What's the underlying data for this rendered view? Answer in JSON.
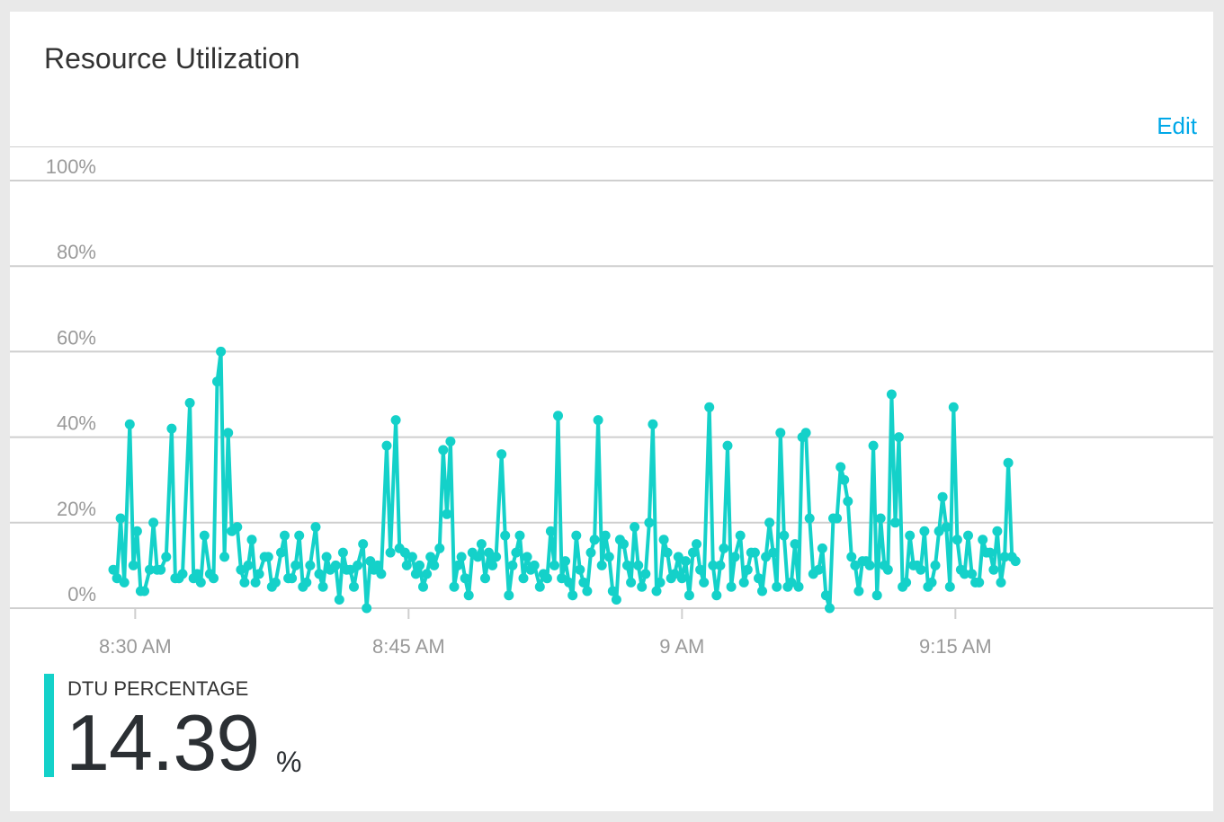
{
  "card": {
    "title": "Resource Utilization",
    "edit_label": "Edit"
  },
  "metric": {
    "label": "DTU PERCENTAGE",
    "value": "14.39",
    "unit": "%"
  },
  "colors": {
    "series": "#14d1c9",
    "edit_link": "#00a8e8",
    "grid": "#cfcfcf"
  },
  "chart_data": {
    "type": "line",
    "title": "",
    "xlabel": "",
    "ylabel": "",
    "ylim": [
      0,
      100
    ],
    "y_ticks": [
      {
        "value": 0,
        "label": "0%"
      },
      {
        "value": 20,
        "label": "20%"
      },
      {
        "value": 40,
        "label": "40%"
      },
      {
        "value": 60,
        "label": "60%"
      },
      {
        "value": 80,
        "label": "80%"
      },
      {
        "value": 100,
        "label": "100%"
      }
    ],
    "x_unit": "minutes after 8:30 AM",
    "xlim": [
      -1.25,
      58.75
    ],
    "x_ticks": [
      {
        "value": 0,
        "label": "8:30 AM"
      },
      {
        "value": 15,
        "label": "8:45 AM"
      },
      {
        "value": 30,
        "label": "9 AM"
      },
      {
        "value": 45,
        "label": "9:15 AM"
      }
    ],
    "grid": true,
    "legend": "none",
    "series": [
      {
        "values": [
          [
            -1.2,
            9
          ],
          [
            -1.0,
            7
          ],
          [
            -0.8,
            21
          ],
          [
            -0.6,
            6
          ],
          [
            -0.3,
            43
          ],
          [
            -0.1,
            10
          ],
          [
            0.1,
            18
          ],
          [
            0.3,
            4
          ],
          [
            0.5,
            4
          ],
          [
            0.8,
            9
          ],
          [
            1.0,
            20
          ],
          [
            1.2,
            9
          ],
          [
            1.4,
            9
          ],
          [
            1.7,
            12
          ],
          [
            2.0,
            42
          ],
          [
            2.2,
            7
          ],
          [
            2.4,
            7
          ],
          [
            2.6,
            8
          ],
          [
            3.0,
            48
          ],
          [
            3.2,
            7
          ],
          [
            3.4,
            8
          ],
          [
            3.6,
            6
          ],
          [
            3.8,
            17
          ],
          [
            4.1,
            8
          ],
          [
            4.3,
            7
          ],
          [
            4.5,
            53
          ],
          [
            4.7,
            60
          ],
          [
            4.9,
            12
          ],
          [
            5.1,
            41
          ],
          [
            5.3,
            18
          ],
          [
            5.6,
            19
          ],
          [
            5.8,
            9
          ],
          [
            6.0,
            6
          ],
          [
            6.2,
            10
          ],
          [
            6.4,
            16
          ],
          [
            6.6,
            6
          ],
          [
            6.8,
            8
          ],
          [
            7.1,
            12
          ],
          [
            7.3,
            12
          ],
          [
            7.5,
            5
          ],
          [
            7.7,
            6
          ],
          [
            8.0,
            13
          ],
          [
            8.2,
            17
          ],
          [
            8.4,
            7
          ],
          [
            8.6,
            7
          ],
          [
            8.8,
            10
          ],
          [
            9.0,
            17
          ],
          [
            9.2,
            5
          ],
          [
            9.4,
            6
          ],
          [
            9.6,
            10
          ],
          [
            9.9,
            19
          ],
          [
            10.1,
            8
          ],
          [
            10.3,
            5
          ],
          [
            10.5,
            12
          ],
          [
            10.7,
            9
          ],
          [
            11.0,
            10
          ],
          [
            11.2,
            2
          ],
          [
            11.4,
            13
          ],
          [
            11.6,
            9
          ],
          [
            11.8,
            9
          ],
          [
            12.0,
            5
          ],
          [
            12.2,
            10
          ],
          [
            12.5,
            15
          ],
          [
            12.7,
            0
          ],
          [
            12.9,
            11
          ],
          [
            13.1,
            9
          ],
          [
            13.3,
            10
          ],
          [
            13.5,
            8
          ],
          [
            13.8,
            38
          ],
          [
            14.0,
            13
          ],
          [
            14.3,
            44
          ],
          [
            14.5,
            14
          ],
          [
            14.8,
            13
          ],
          [
            14.9,
            10
          ],
          [
            15.2,
            12
          ],
          [
            15.4,
            8
          ],
          [
            15.6,
            10
          ],
          [
            15.8,
            5
          ],
          [
            16.0,
            8
          ],
          [
            16.2,
            12
          ],
          [
            16.4,
            10
          ],
          [
            16.7,
            14
          ],
          [
            16.9,
            37
          ],
          [
            17.1,
            22
          ],
          [
            17.3,
            39
          ],
          [
            17.5,
            5
          ],
          [
            17.7,
            10
          ],
          [
            17.9,
            12
          ],
          [
            18.1,
            7
          ],
          [
            18.3,
            3
          ],
          [
            18.5,
            13
          ],
          [
            18.8,
            12
          ],
          [
            19.0,
            15
          ],
          [
            19.2,
            7
          ],
          [
            19.4,
            13
          ],
          [
            19.6,
            10
          ],
          [
            19.8,
            12
          ],
          [
            20.1,
            36
          ],
          [
            20.3,
            17
          ],
          [
            20.5,
            3
          ],
          [
            20.7,
            10
          ],
          [
            20.9,
            13
          ],
          [
            21.1,
            17
          ],
          [
            21.3,
            7
          ],
          [
            21.5,
            12
          ],
          [
            21.7,
            9
          ],
          [
            21.9,
            10
          ],
          [
            22.2,
            5
          ],
          [
            22.4,
            8
          ],
          [
            22.6,
            7
          ],
          [
            22.8,
            18
          ],
          [
            23.0,
            10
          ],
          [
            23.2,
            45
          ],
          [
            23.4,
            7
          ],
          [
            23.6,
            11
          ],
          [
            23.8,
            6
          ],
          [
            24.0,
            3
          ],
          [
            24.2,
            17
          ],
          [
            24.4,
            9
          ],
          [
            24.6,
            6
          ],
          [
            24.8,
            4
          ],
          [
            25.0,
            13
          ],
          [
            25.2,
            16
          ],
          [
            25.4,
            44
          ],
          [
            25.6,
            10
          ],
          [
            25.8,
            17
          ],
          [
            26.0,
            12
          ],
          [
            26.2,
            4
          ],
          [
            26.4,
            2
          ],
          [
            26.6,
            16
          ],
          [
            26.8,
            15
          ],
          [
            27.0,
            10
          ],
          [
            27.2,
            6
          ],
          [
            27.4,
            19
          ],
          [
            27.6,
            10
          ],
          [
            27.8,
            5
          ],
          [
            28.0,
            8
          ],
          [
            28.2,
            20
          ],
          [
            28.4,
            43
          ],
          [
            28.6,
            4
          ],
          [
            28.8,
            6
          ],
          [
            29.0,
            16
          ],
          [
            29.2,
            13
          ],
          [
            29.4,
            7
          ],
          [
            29.6,
            8
          ],
          [
            29.8,
            12
          ],
          [
            30.0,
            7
          ],
          [
            30.2,
            11
          ],
          [
            30.4,
            3
          ],
          [
            30.6,
            13
          ],
          [
            30.8,
            15
          ],
          [
            31.0,
            9
          ],
          [
            31.2,
            6
          ],
          [
            31.5,
            47
          ],
          [
            31.7,
            10
          ],
          [
            31.9,
            3
          ],
          [
            32.1,
            10
          ],
          [
            32.3,
            14
          ],
          [
            32.5,
            38
          ],
          [
            32.7,
            5
          ],
          [
            32.9,
            12
          ],
          [
            33.2,
            17
          ],
          [
            33.4,
            6
          ],
          [
            33.6,
            9
          ],
          [
            33.8,
            13
          ],
          [
            34.0,
            13
          ],
          [
            34.2,
            7
          ],
          [
            34.4,
            4
          ],
          [
            34.6,
            12
          ],
          [
            34.8,
            20
          ],
          [
            35.0,
            13
          ],
          [
            35.2,
            5
          ],
          [
            35.4,
            41
          ],
          [
            35.6,
            17
          ],
          [
            35.8,
            5
          ],
          [
            36.0,
            6
          ],
          [
            36.2,
            15
          ],
          [
            36.4,
            5
          ],
          [
            36.6,
            40
          ],
          [
            36.8,
            41
          ],
          [
            37.0,
            21
          ],
          [
            37.2,
            8
          ],
          [
            37.5,
            9
          ],
          [
            37.7,
            14
          ],
          [
            37.9,
            3
          ],
          [
            38.1,
            0
          ],
          [
            38.3,
            21
          ],
          [
            38.5,
            21
          ],
          [
            38.7,
            33
          ],
          [
            38.9,
            30
          ],
          [
            39.1,
            25
          ],
          [
            39.3,
            12
          ],
          [
            39.5,
            10
          ],
          [
            39.7,
            4
          ],
          [
            39.9,
            11
          ],
          [
            40.1,
            11
          ],
          [
            40.3,
            10
          ],
          [
            40.5,
            38
          ],
          [
            40.7,
            3
          ],
          [
            40.9,
            21
          ],
          [
            41.1,
            10
          ],
          [
            41.3,
            9
          ],
          [
            41.5,
            50
          ],
          [
            41.7,
            20
          ],
          [
            41.9,
            40
          ],
          [
            42.1,
            5
          ],
          [
            42.3,
            6
          ],
          [
            42.5,
            17
          ],
          [
            42.7,
            10
          ],
          [
            42.9,
            10
          ],
          [
            43.1,
            9
          ],
          [
            43.3,
            18
          ],
          [
            43.5,
            5
          ],
          [
            43.7,
            6
          ],
          [
            43.9,
            10
          ],
          [
            44.1,
            18
          ],
          [
            44.3,
            26
          ],
          [
            44.5,
            19
          ],
          [
            44.7,
            5
          ],
          [
            44.9,
            47
          ],
          [
            45.1,
            16
          ],
          [
            45.3,
            9
          ],
          [
            45.5,
            8
          ],
          [
            45.7,
            17
          ],
          [
            45.9,
            8
          ],
          [
            46.1,
            6
          ],
          [
            46.3,
            6
          ],
          [
            46.5,
            16
          ],
          [
            46.7,
            13
          ],
          [
            46.9,
            13
          ],
          [
            47.1,
            9
          ],
          [
            47.3,
            18
          ],
          [
            47.5,
            6
          ],
          [
            47.7,
            12
          ],
          [
            47.9,
            34
          ],
          [
            48.1,
            12
          ],
          [
            48.3,
            11
          ]
        ]
      }
    ]
  }
}
